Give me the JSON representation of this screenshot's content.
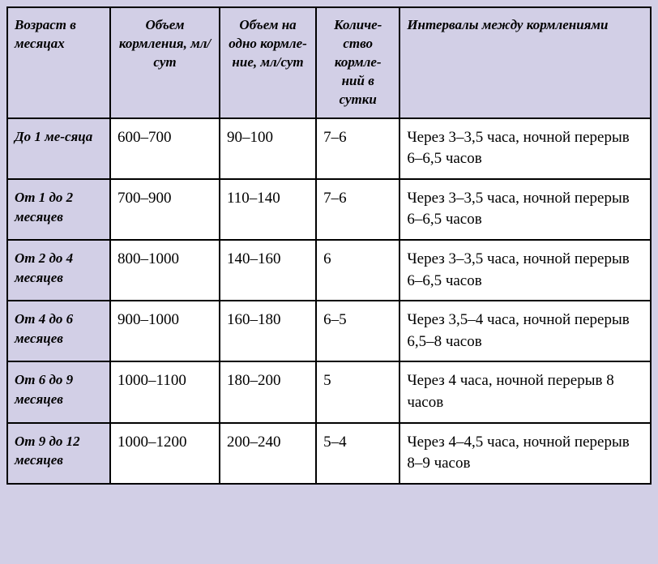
{
  "table": {
    "background_color": "#d2cfe6",
    "border_color": "#000000",
    "cell_background": "#ffffff",
    "header_background": "#d2cfe6",
    "age_cell_background": "#d2cfe6",
    "header_fontsize": 17,
    "cell_fontsize": 19,
    "headers": {
      "age": "Возраст в месяцах",
      "volume_day": "Объем кормления, мл/сут",
      "volume_feed": "Объем на одно кормле-ние, мл/сут",
      "count": "Количе-ство кормле-ний в сутки",
      "interval": "Интервалы между кормлениями"
    },
    "rows": [
      {
        "age": "До 1 ме-сяца",
        "volume_day": "600–700",
        "volume_feed": "90–100",
        "count": "7–6",
        "interval": "Через 3–3,5 часа, ночной перерыв 6–6,5 часов"
      },
      {
        "age": "От 1 до 2 месяцев",
        "volume_day": "700–900",
        "volume_feed": "110–140",
        "count": "7–6",
        "interval": "Через 3–3,5 часа, ночной перерыв 6–6,5 часов"
      },
      {
        "age": "От 2 до 4 месяцев",
        "volume_day": "800–1000",
        "volume_feed": "140–160",
        "count": "6",
        "interval": "Через 3–3,5 часа, ночной перерыв 6–6,5 часов"
      },
      {
        "age": "От 4 до 6 месяцев",
        "volume_day": "900–1000",
        "volume_feed": "160–180",
        "count": "6–5",
        "interval": "Через 3,5–4 часа, ночной перерыв 6,5–8 часов"
      },
      {
        "age": "От 6 до 9 месяцев",
        "volume_day": "1000–1100",
        "volume_feed": "180–200",
        "count": "5",
        "interval": "Через 4 часа, ночной перерыв 8 часов"
      },
      {
        "age": "От 9 до 12 месяцев",
        "volume_day": "1000–1200",
        "volume_feed": "200–240",
        "count": "5–4",
        "interval": "Через 4–4,5 часа, ночной перерыв 8–9 часов"
      }
    ]
  }
}
